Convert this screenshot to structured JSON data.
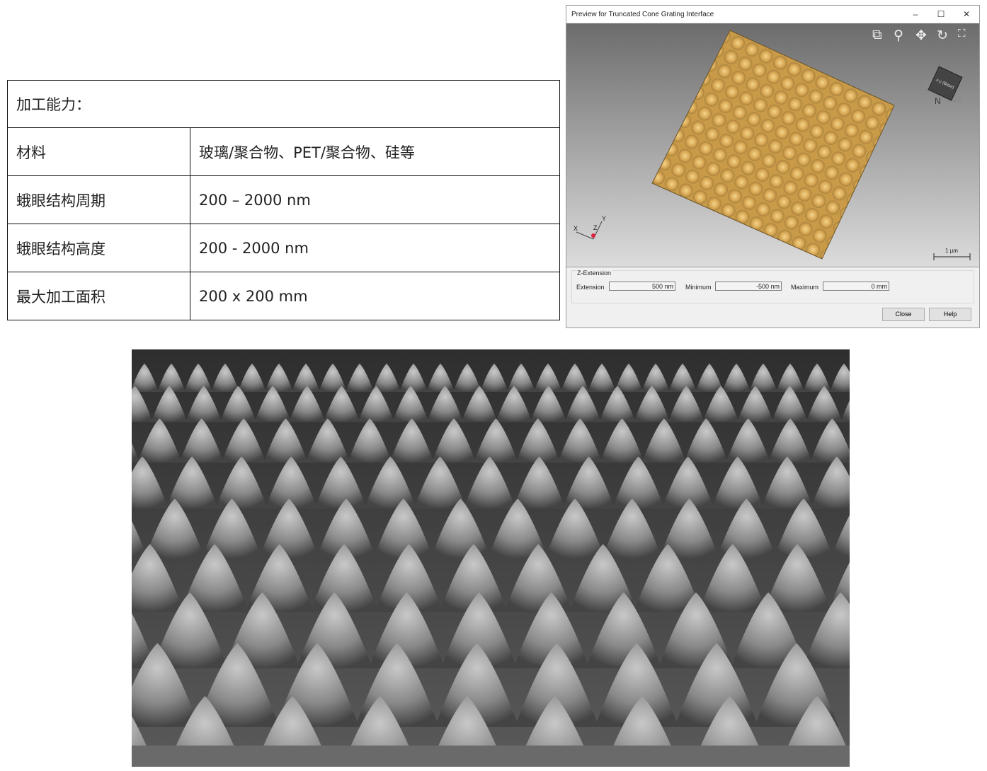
{
  "table": {
    "header": "加工能力：",
    "rows": [
      {
        "label": "材料",
        "value": "玻璃/聚合物、PET/聚合物、硅等"
      },
      {
        "label": "蛾眼结构周期",
        "value": "200 – 2000 nm"
      },
      {
        "label": "蛾眼结构高度",
        "value": "200 - 2000 nm"
      },
      {
        "label": "最大加工面积",
        "value": "200 x 200 mm"
      }
    ]
  },
  "preview_window": {
    "title": "Preview for Truncated Cone Grating Interface",
    "controls": {
      "minimize": "–",
      "maximize": "☐",
      "close": "✕"
    },
    "toolbar_icons": [
      "zoom-window-icon",
      "zoom-icon",
      "pan-icon",
      "rotate-icon",
      "fit-view-icon"
    ],
    "orientation_cube": {
      "face": "x-y (Base)",
      "compass": "N"
    },
    "axes": {
      "x": "X",
      "y": "Y",
      "z": "Z"
    },
    "scale_bar": "1 µm",
    "surface_color": "#e0b45a",
    "z_extension": {
      "group_label": "Z-Extension",
      "extension_label": "Extension",
      "extension_value": "500 nm",
      "minimum_label": "Minimum",
      "minimum_value": "-500 nm",
      "maximum_label": "Maximum",
      "maximum_value": "0 mm"
    },
    "buttons": {
      "close": "Close",
      "help": "Help"
    }
  }
}
